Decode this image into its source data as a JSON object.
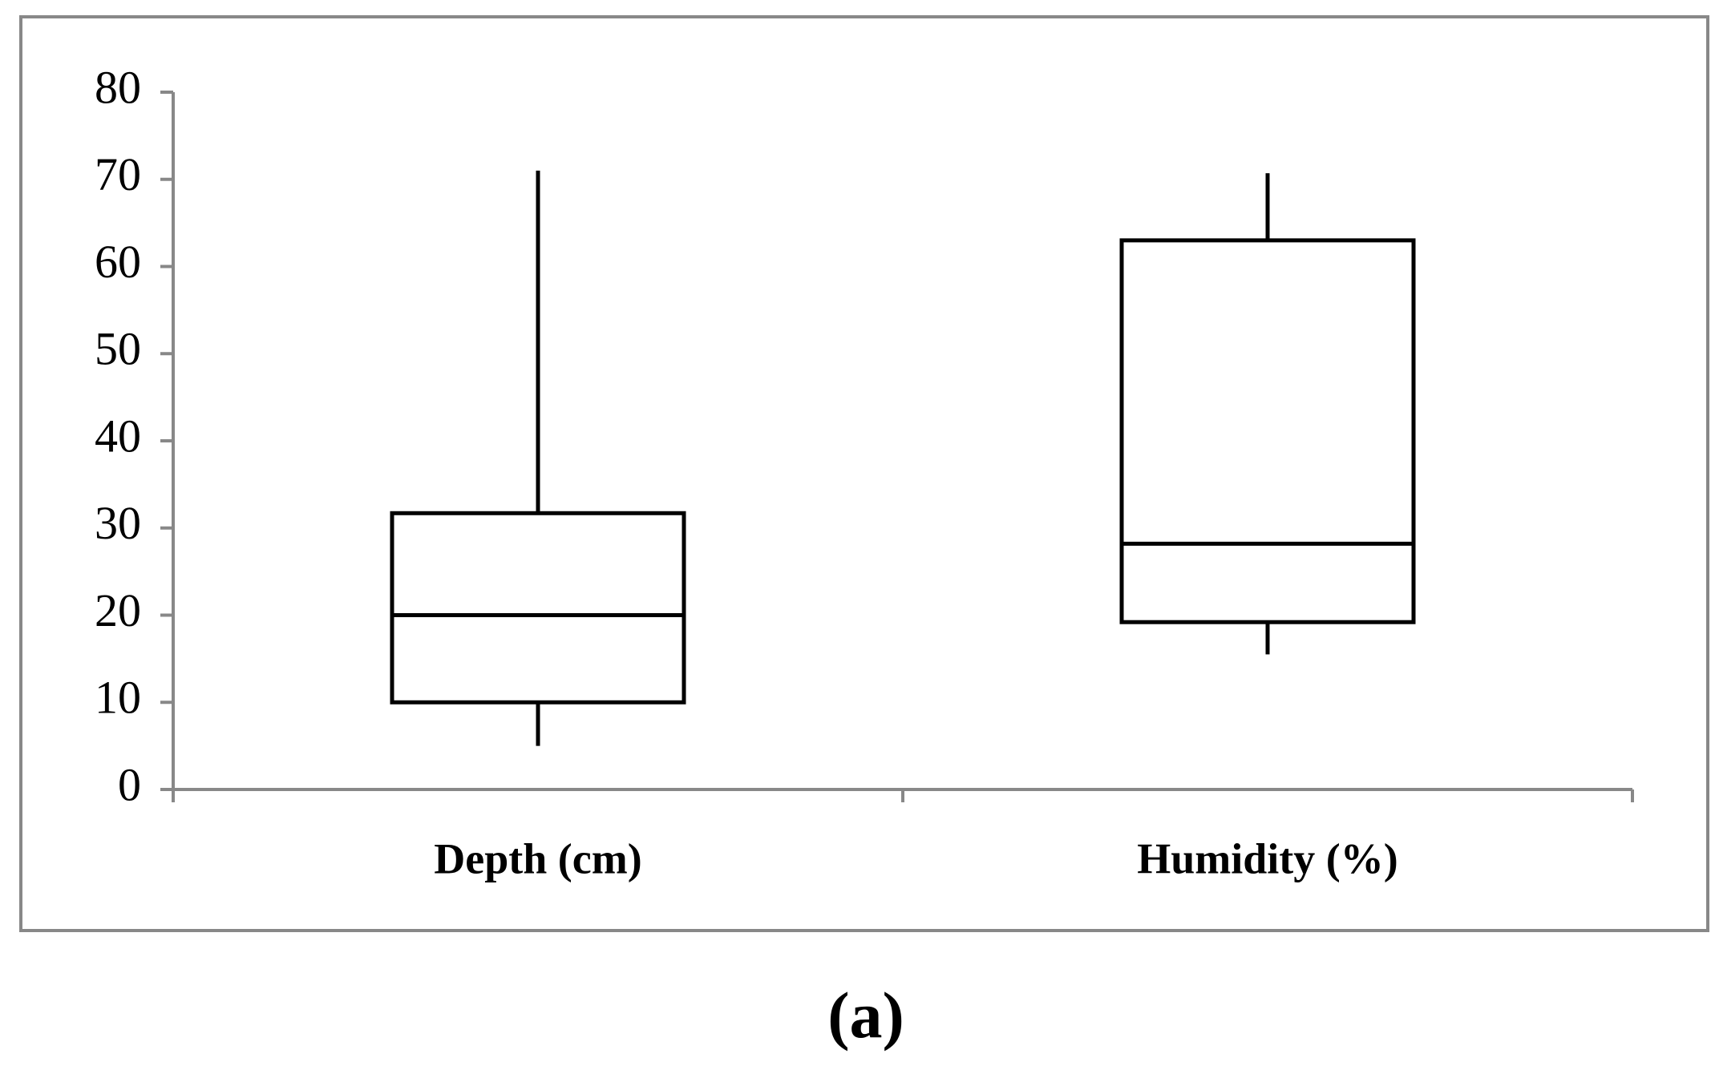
{
  "chart_data": {
    "type": "box",
    "categories": [
      "Depth (cm)",
      "Humidity (%)"
    ],
    "min": [
      5,
      15.5
    ],
    "q1": [
      10,
      19.2
    ],
    "median": [
      20,
      28.2
    ],
    "q3": [
      31.7,
      63
    ],
    "max": [
      71,
      70.7
    ],
    "ylim": [
      0,
      80
    ],
    "yticks": [
      0,
      10,
      20,
      30,
      40,
      50,
      60,
      70,
      80
    ],
    "caption": "(a)"
  }
}
